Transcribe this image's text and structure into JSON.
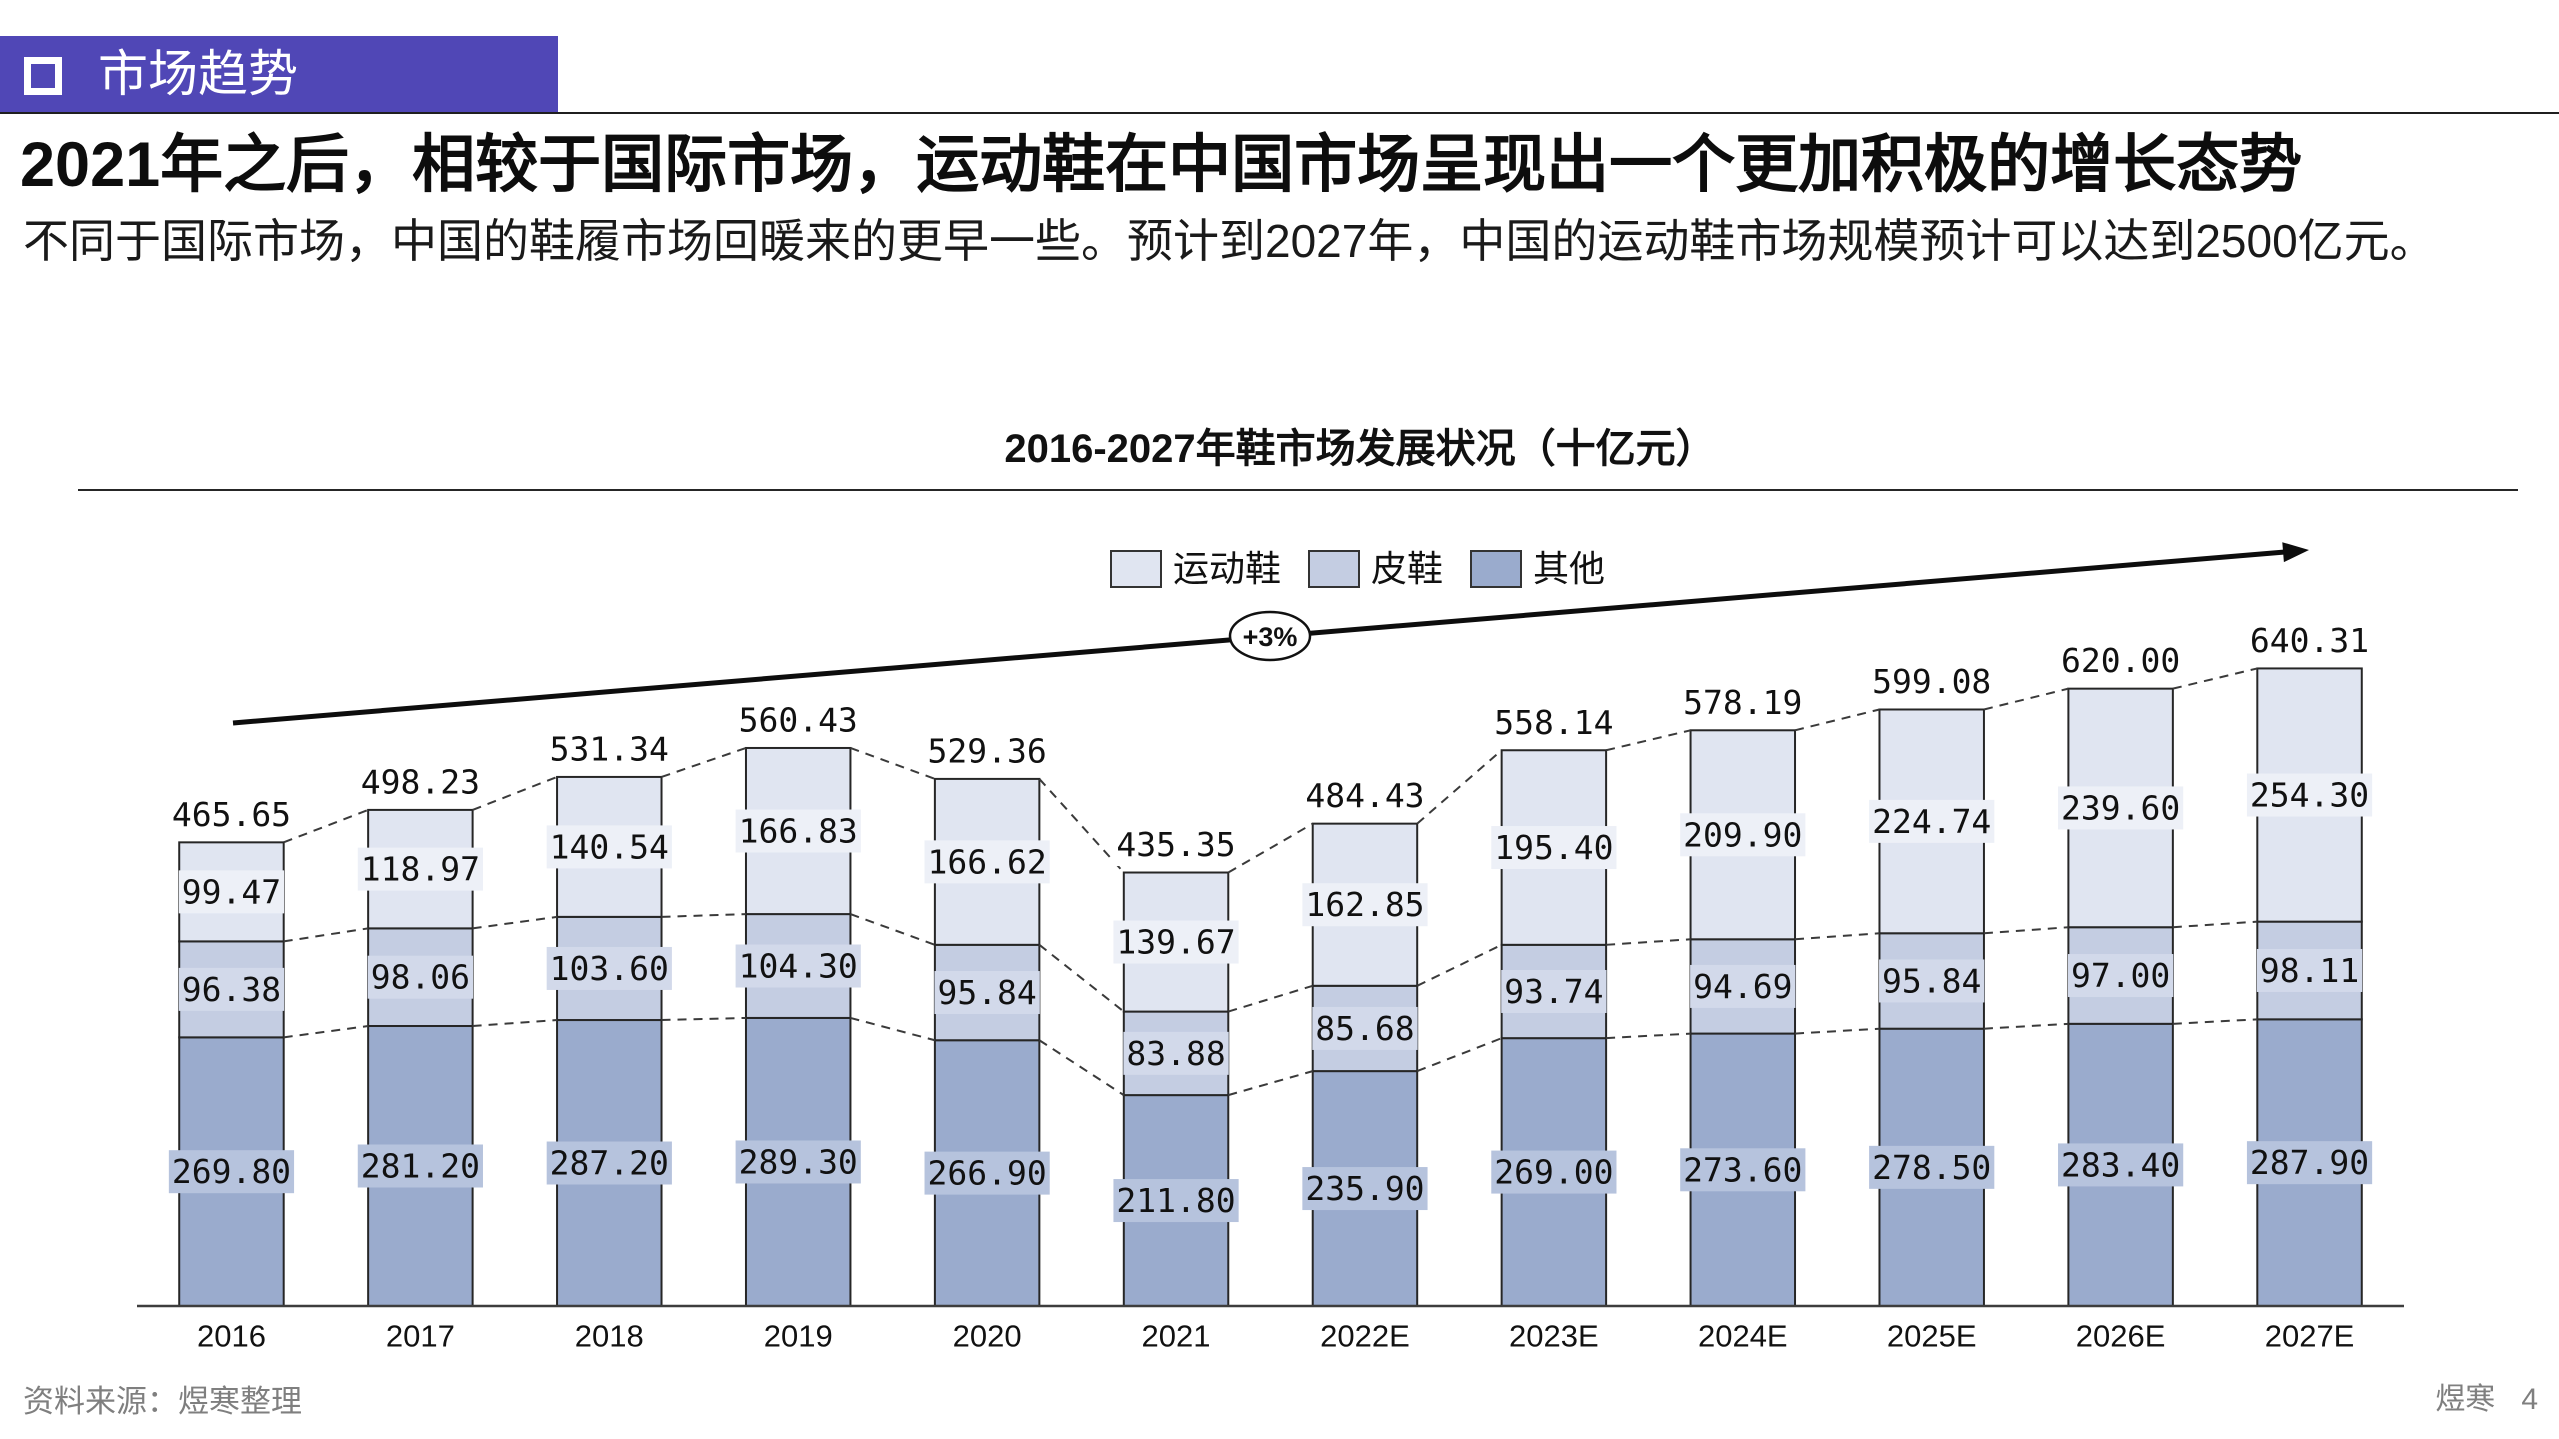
{
  "header": {
    "icon": "hollow-square-icon",
    "title": "市场趋势"
  },
  "headline": "2021年之后，相较于国际市场，运动鞋在中国市场呈现出一个更加积极的增长态势",
  "subtitle": "不同于国际市场，中国的鞋履市场回暖来的更早一些。预计到2027年，中国的运动鞋市场规模预计可以达到2500亿元。",
  "colors": {
    "header_background": "#5047b6",
    "header_text": "#ffffff",
    "text": "#111111",
    "footer_text": "#7f7f7f"
  },
  "chart_data": {
    "type": "bar",
    "stacked": true,
    "title": "2016-2027年鞋市场发展状况（十亿元）",
    "xlabel": "",
    "ylabel": "",
    "categories": [
      "2016",
      "2017",
      "2018",
      "2019",
      "2020",
      "2021",
      "2022E",
      "2023E",
      "2024E",
      "2025E",
      "2026E",
      "2027E"
    ],
    "series": [
      {
        "name": "其他",
        "color": "#9aabcd",
        "values": [
          269.8,
          281.2,
          287.2,
          289.3,
          266.9,
          211.8,
          235.9,
          269.0,
          273.6,
          278.5,
          283.4,
          287.9
        ]
      },
      {
        "name": "皮鞋",
        "color": "#c4cde2",
        "values": [
          96.38,
          98.06,
          103.6,
          104.3,
          95.84,
          83.88,
          85.68,
          93.74,
          94.69,
          95.84,
          97.0,
          98.11
        ]
      },
      {
        "name": "运动鞋",
        "color": "#e0e5f1",
        "values": [
          99.47,
          118.97,
          140.54,
          166.83,
          166.62,
          139.67,
          162.85,
          195.4,
          209.9,
          224.74,
          239.6,
          254.3
        ]
      }
    ],
    "totals": [
      465.65,
      498.23,
      531.34,
      560.43,
      529.36,
      435.35,
      484.43,
      558.14,
      578.19,
      599.08,
      620.0,
      640.31
    ],
    "annotation": "+3%",
    "ylim": [
      0,
      700
    ],
    "grid": false,
    "legend_position": "top"
  },
  "footer": {
    "source": "资料来源：煜寒整理",
    "brand": "煜寒",
    "page_number": "4"
  }
}
